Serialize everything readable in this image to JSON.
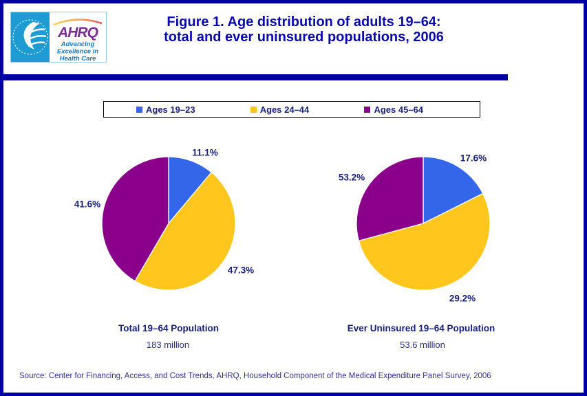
{
  "slide": {
    "title_line1": "Figure 1. Age distribution of adults 19–64:",
    "title_line2": "total and ever uninsured populations, 2006",
    "source": "Source: Center for Financing, Access, and Cost Trends, AHRQ, Household Component of the Medical Expenditure Panel Survey, 2006"
  },
  "logo": {
    "agency": "AHRQ",
    "tagline1": "Advancing",
    "tagline2": "Excellence in",
    "tagline3": "Health Care"
  },
  "legend": {
    "items": [
      {
        "label": "Ages 19–23",
        "color": "#3366E8"
      },
      {
        "label": "Ages 24–44",
        "color": "#FFC61E"
      },
      {
        "label": "Ages 45–64",
        "color": "#8A008A"
      }
    ]
  },
  "chart_data": [
    {
      "type": "pie",
      "title": "Total 19–64 Population",
      "subtitle": "183 million",
      "categories": [
        "Ages 19–23",
        "Ages 24–44",
        "Ages 45–64"
      ],
      "values": [
        11.1,
        47.3,
        41.6
      ],
      "value_labels": [
        "11.1%",
        "47.3%",
        "41.6%"
      ],
      "colors": [
        "#3366E8",
        "#FFC61E",
        "#8A008A"
      ],
      "start_angle_deg": -90,
      "direction": "clockwise",
      "legend_position": "top"
    },
    {
      "type": "pie",
      "title": "Ever Uninsured 19–64 Population",
      "subtitle": "53.6 million",
      "categories": [
        "Ages 19–23",
        "Ages 24–44",
        "Ages 45–64"
      ],
      "values": [
        17.6,
        53.2,
        29.2
      ],
      "value_labels": [
        "17.6%",
        "53.2%",
        "29.2%"
      ],
      "colors": [
        "#3366E8",
        "#FFC61E",
        "#8A008A"
      ],
      "start_angle_deg": -90,
      "direction": "clockwise",
      "legend_position": "top"
    }
  ],
  "theme": {
    "accent": "#0000A0",
    "text_navy": "#18207B",
    "hhs_cyan": "#1E9BD2",
    "ahrq_purple": "#7B2E91",
    "tagline_blue": "#1B74BC"
  }
}
